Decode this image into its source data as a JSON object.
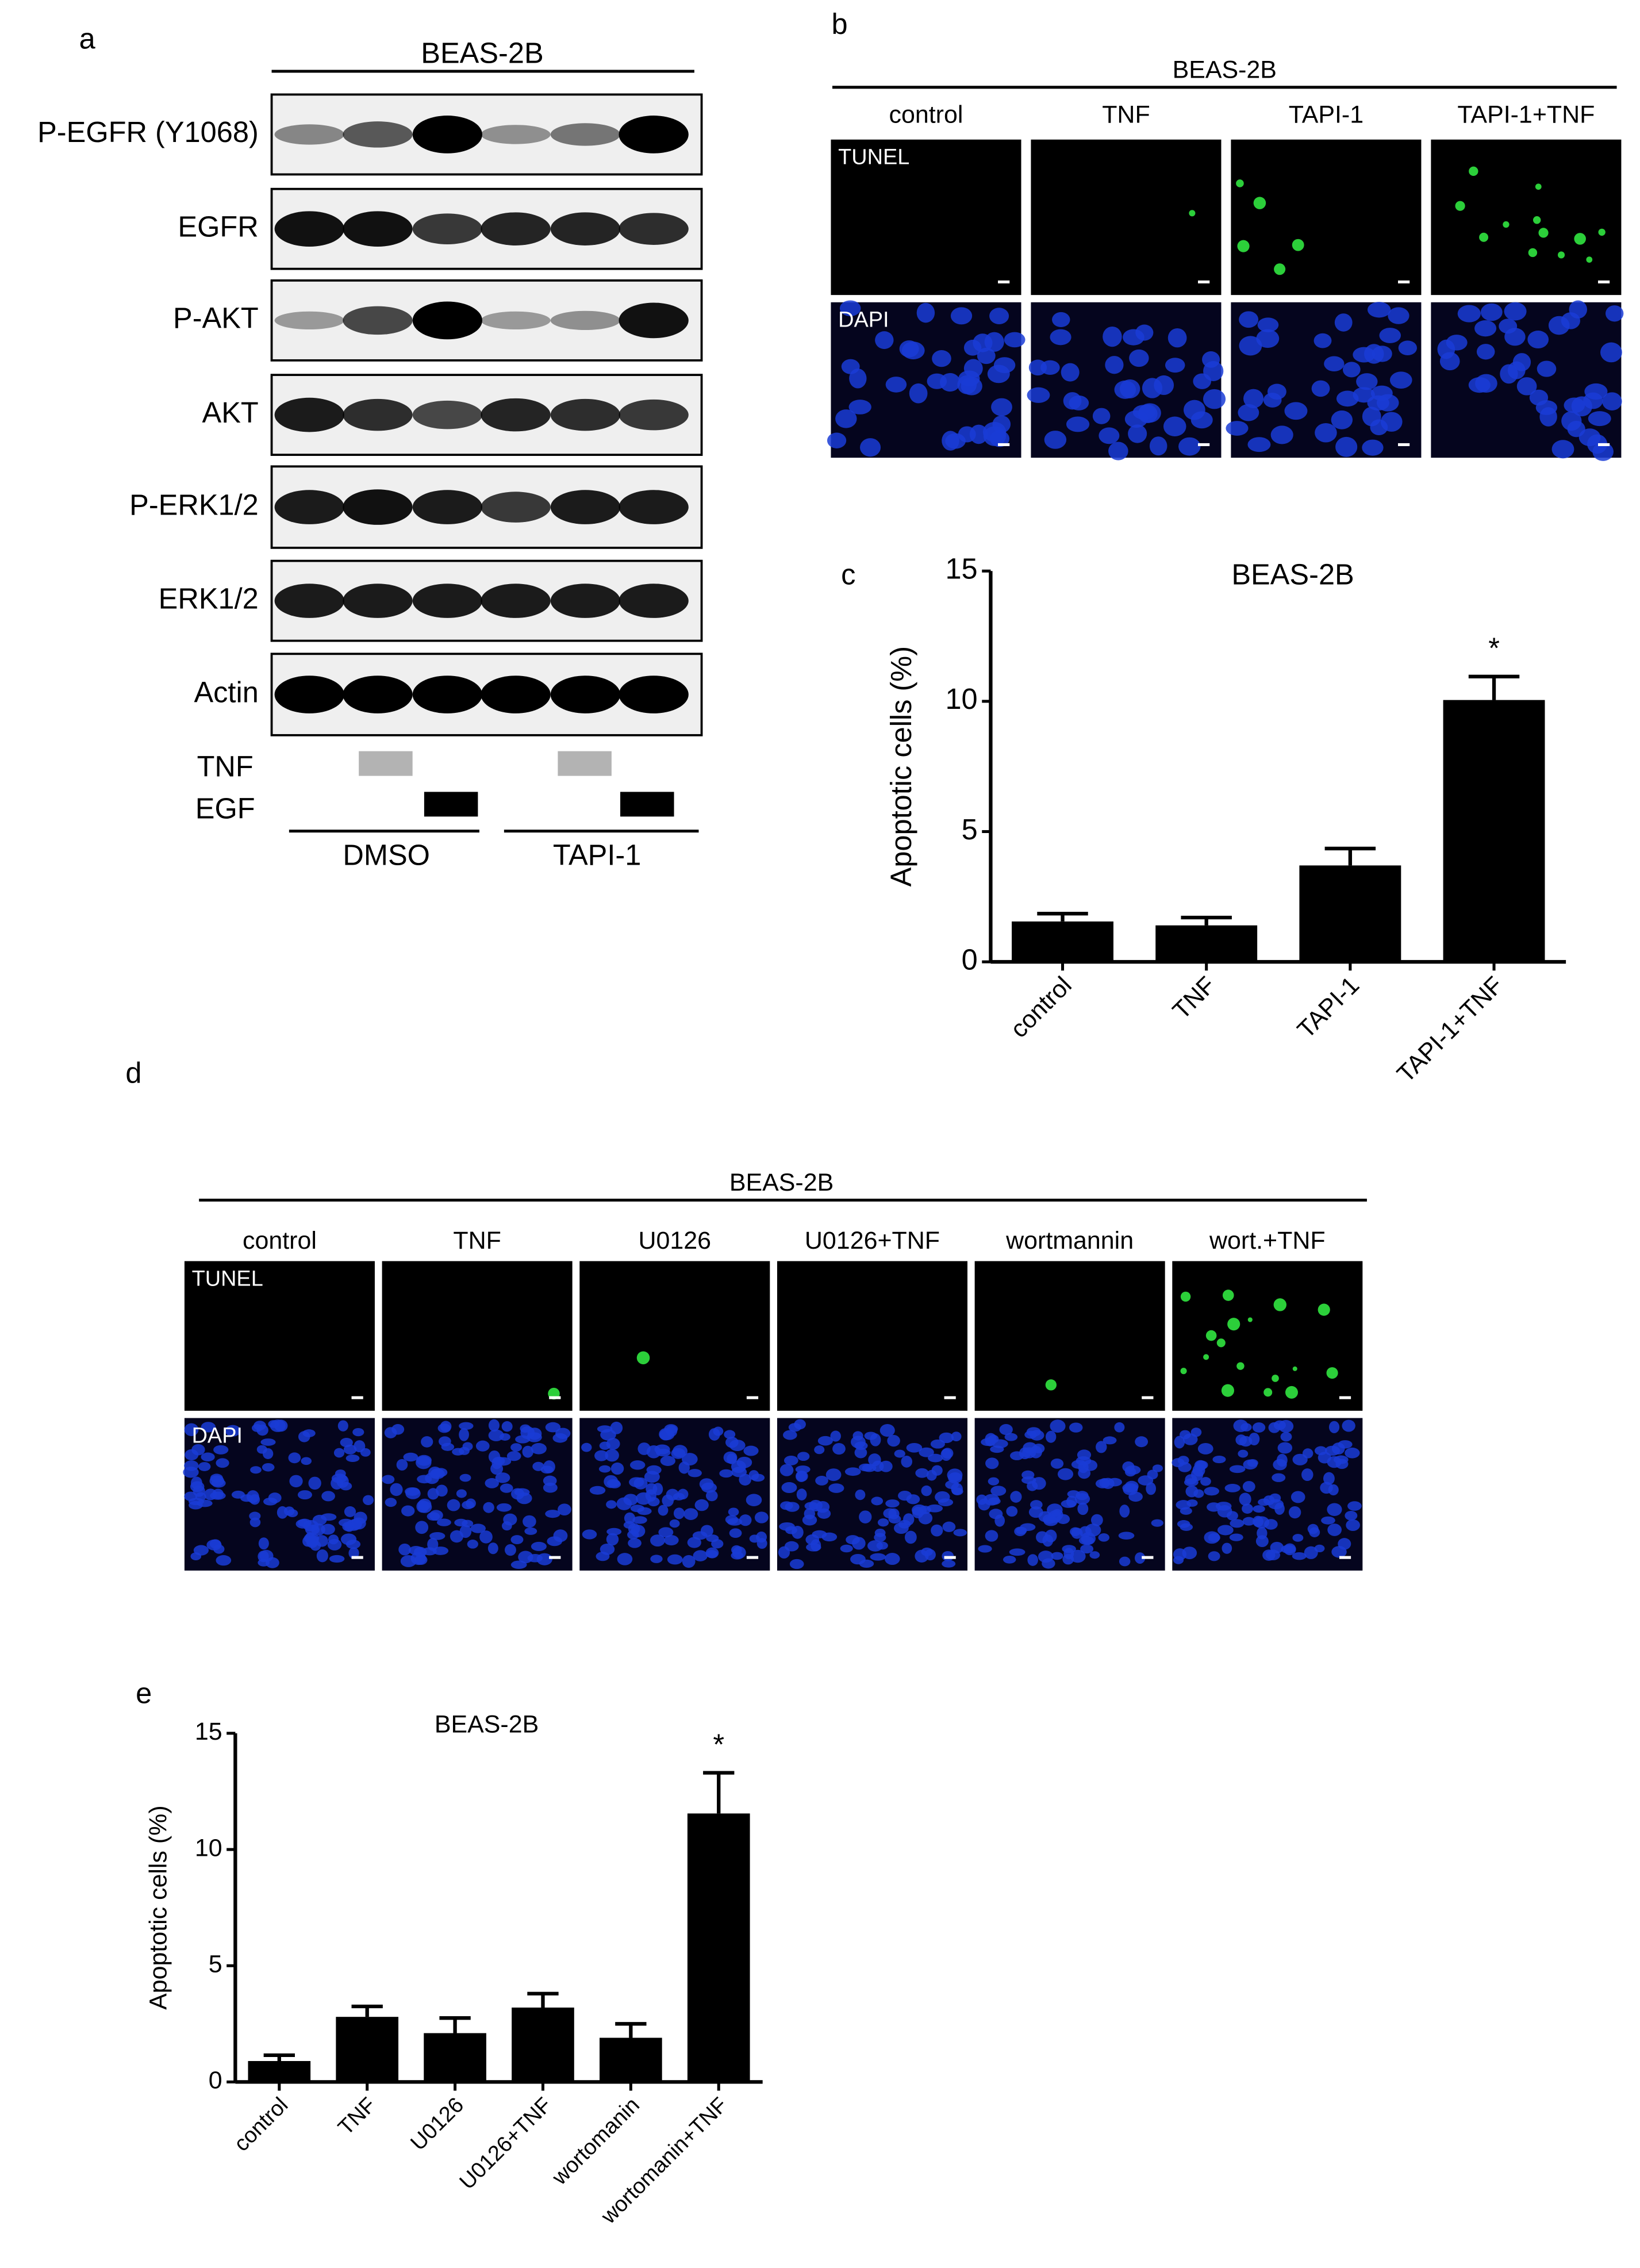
{
  "panel_labels": [
    "a",
    "b",
    "c",
    "d",
    "e"
  ],
  "panel_a": {
    "cell_line": "BEAS-2B",
    "blots": [
      "P-EGFR (Y1068)",
      "EGFR",
      "P-AKT",
      "AKT",
      "P-ERK1/2",
      "ERK1/2",
      "Actin"
    ],
    "treatments": [
      "TNF",
      "EGF"
    ],
    "groups": [
      "DMSO",
      "TAPI-1"
    ]
  },
  "panel_b": {
    "cell_line": "BEAS-2B",
    "conditions": [
      "control",
      "TNF",
      "TAPI-1",
      "TAPI-1+TNF"
    ],
    "stains": [
      "TUNEL",
      "DAPI"
    ]
  },
  "panel_d": {
    "cell_line": "BEAS-2B",
    "conditions": [
      "control",
      "TNF",
      "U0126",
      "U0126+TNF",
      "wortmannin",
      "wort.+TNF"
    ],
    "stains": [
      "TUNEL",
      "DAPI"
    ]
  },
  "chart_data": [
    {
      "type": "bar",
      "title": "BEAS-2B",
      "y_label": "Apoptotic cells (%)",
      "categories": [
        "control",
        "TNF",
        "TAPI-1",
        "TAPI-1+TNF"
      ],
      "values": [
        1.55,
        1.4,
        3.7,
        10.05
      ],
      "errors": [
        0.3,
        0.3,
        0.65,
        0.9
      ],
      "significance": [
        null,
        null,
        null,
        "*"
      ],
      "color": "#000000",
      "ylim": [
        0,
        15
      ],
      "yticks": [
        0,
        5,
        10,
        15
      ]
    },
    {
      "type": "bar",
      "title": "BEAS-2B",
      "y_label": "Apoptotic cells (%)",
      "categories": [
        "control",
        "TNF",
        "U0126",
        "U0126+TNF",
        "wortomanin",
        "wortomanin+TNF"
      ],
      "values": [
        0.9,
        2.8,
        2.1,
        3.2,
        1.9,
        11.55
      ],
      "errors": [
        0.25,
        0.45,
        0.65,
        0.6,
        0.6,
        1.75
      ],
      "significance": [
        null,
        null,
        null,
        null,
        null,
        "*"
      ],
      "color": "#000000",
      "ylim": [
        0,
        15
      ],
      "yticks": [
        0,
        5,
        10,
        15
      ]
    }
  ]
}
